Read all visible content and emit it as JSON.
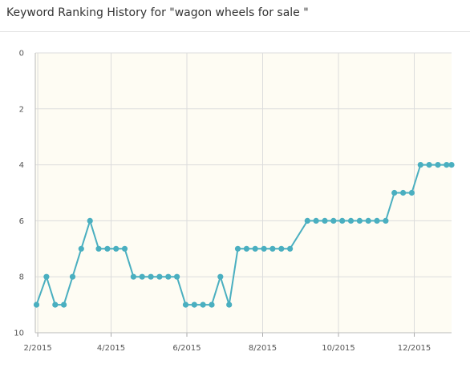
{
  "title": "Keyword Ranking History for \"wagon wheels for sale \"",
  "colors": {
    "line": "#4aafc0",
    "plot_bg": "#fefcf3",
    "grid": "#dcdcdc"
  },
  "chart_data": {
    "type": "line",
    "title": "Keyword Ranking History for \"wagon wheels for sale \"",
    "xlabel": "",
    "ylabel": "",
    "ylim": [
      0,
      10
    ],
    "y_inverted": true,
    "grid": true,
    "x_ticks": [
      "2/2015",
      "4/2015",
      "6/2015",
      "8/2015",
      "10/2015",
      "12/2015"
    ],
    "y_ticks": [
      0,
      2,
      4,
      6,
      8,
      10
    ],
    "x_range": [
      "2015-01-30",
      "2015-12-31"
    ],
    "series": [
      {
        "name": "",
        "points": [
          [
            "2015-01-31",
            9
          ],
          [
            "2015-02-08",
            8
          ],
          [
            "2015-02-15",
            9
          ],
          [
            "2015-02-22",
            9
          ],
          [
            "2015-03-01",
            8
          ],
          [
            "2015-03-08",
            7
          ],
          [
            "2015-03-15",
            6
          ],
          [
            "2015-03-22",
            7
          ],
          [
            "2015-03-29",
            7
          ],
          [
            "2015-04-05",
            7
          ],
          [
            "2015-04-12",
            7
          ],
          [
            "2015-04-19",
            8
          ],
          [
            "2015-04-26",
            8
          ],
          [
            "2015-05-03",
            8
          ],
          [
            "2015-05-10",
            8
          ],
          [
            "2015-05-17",
            8
          ],
          [
            "2015-05-24",
            8
          ],
          [
            "2015-05-31",
            9
          ],
          [
            "2015-06-07",
            9
          ],
          [
            "2015-06-14",
            9
          ],
          [
            "2015-06-21",
            9
          ],
          [
            "2015-06-28",
            8
          ],
          [
            "2015-07-05",
            9
          ],
          [
            "2015-07-12",
            7
          ],
          [
            "2015-07-19",
            7
          ],
          [
            "2015-07-26",
            7
          ],
          [
            "2015-08-02",
            7
          ],
          [
            "2015-08-09",
            7
          ],
          [
            "2015-08-16",
            7
          ],
          [
            "2015-08-23",
            7
          ],
          [
            "2015-09-06",
            6
          ],
          [
            "2015-09-13",
            6
          ],
          [
            "2015-09-20",
            6
          ],
          [
            "2015-09-27",
            6
          ],
          [
            "2015-10-04",
            6
          ],
          [
            "2015-10-11",
            6
          ],
          [
            "2015-10-18",
            6
          ],
          [
            "2015-10-25",
            6
          ],
          [
            "2015-11-01",
            6
          ],
          [
            "2015-11-08",
            6
          ],
          [
            "2015-11-15",
            5
          ],
          [
            "2015-11-22",
            5
          ],
          [
            "2015-11-29",
            5
          ],
          [
            "2015-12-06",
            4
          ],
          [
            "2015-12-13",
            4
          ],
          [
            "2015-12-20",
            4
          ],
          [
            "2015-12-27",
            4
          ],
          [
            "2015-12-31",
            4
          ]
        ]
      }
    ]
  }
}
